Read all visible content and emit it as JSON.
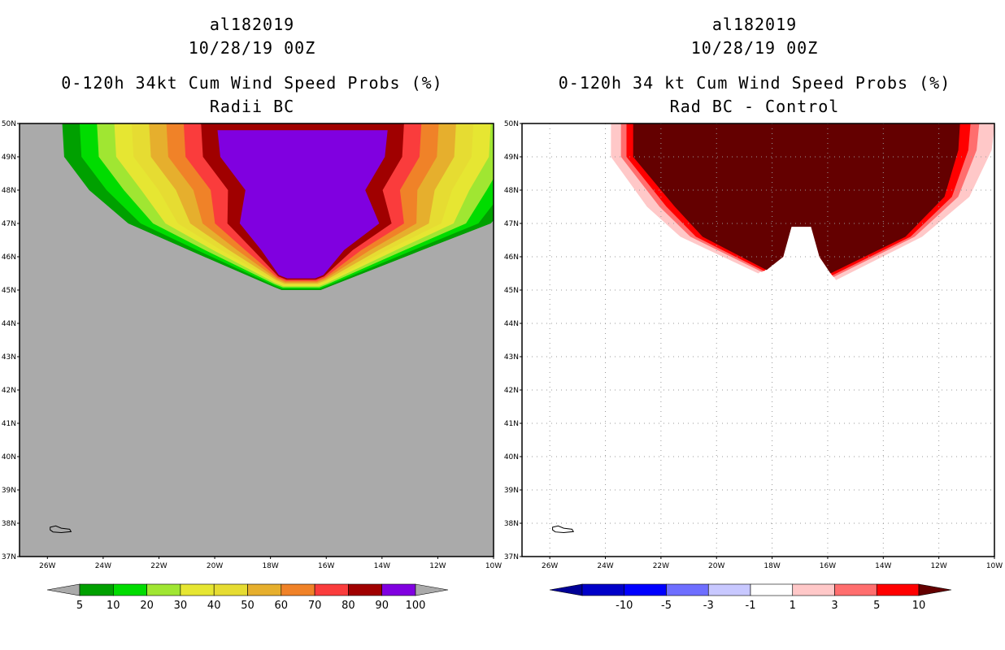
{
  "left_panel": {
    "storm_id": "al182019",
    "datetime": "10/28/19 00Z",
    "title": "0-120h 34kt Cum Wind Speed Probs (%)",
    "subtitle": "Radii BC",
    "background_color": "#aaaaaa"
  },
  "right_panel": {
    "storm_id": "al182019",
    "datetime": "10/28/19 00Z",
    "title": "0-120h 34 kt Cum Wind Speed Probs (%)",
    "subtitle": "Rad BC - Control",
    "background_color": "#ffffff"
  },
  "axes": {
    "lat_labels": [
      "50N",
      "49N",
      "48N",
      "47N",
      "46N",
      "45N",
      "44N",
      "43N",
      "42N",
      "41N",
      "40N",
      "39N",
      "38N",
      "37N"
    ],
    "lon_labels": [
      "26W",
      "24W",
      "22W",
      "20W",
      "18W",
      "16W",
      "14W",
      "12W",
      "10W"
    ],
    "lat_range": [
      37,
      50
    ],
    "lon_range": [
      -27,
      -10
    ]
  },
  "left_colorbar": {
    "colors": [
      "#00a000",
      "#00dc00",
      "#a0e632",
      "#e6e632",
      "#e6dc32",
      "#e6af2d",
      "#f08228",
      "#fa3c3c",
      "#a00000",
      "#8000e0"
    ],
    "tick_labels": [
      "5",
      "10",
      "20",
      "30",
      "40",
      "50",
      "60",
      "70",
      "80",
      "90",
      "100"
    ],
    "end_color": "#aaaaaa"
  },
  "right_colorbar": {
    "colors": [
      "#0000c8",
      "#0000ff",
      "#6e6eff",
      "#c8c8ff",
      "#ffffff",
      "#ffc8c8",
      "#ff6e6e",
      "#ff0000"
    ],
    "tick_labels": [
      "-10",
      "-5",
      "-3",
      "-1",
      "1",
      "3",
      "5",
      "10"
    ],
    "low_end_color": "#000096",
    "high_end_color": "#640000"
  }
}
